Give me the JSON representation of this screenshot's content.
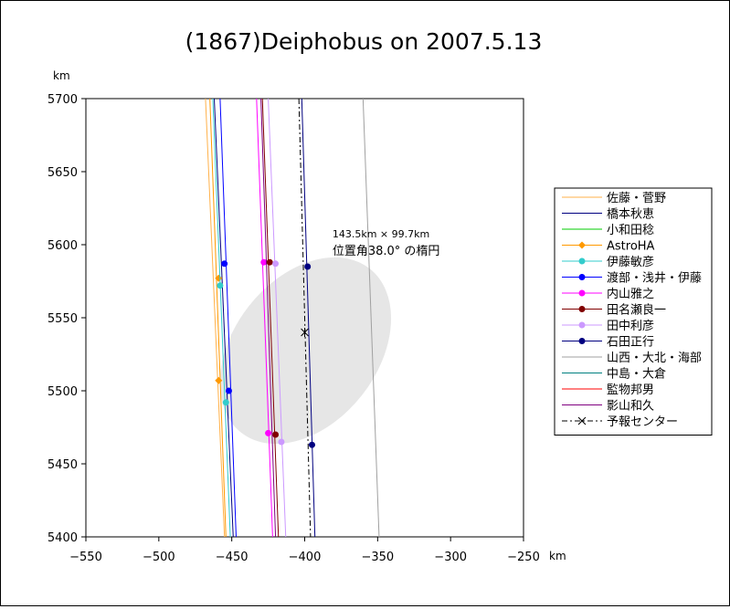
{
  "chart_data": {
    "type": "line",
    "title": "(1867)Deiphobus on 2007.5.13",
    "xlabel": "km",
    "ylabel": "km",
    "xlim": [
      -550,
      -250
    ],
    "ylim": [
      5400,
      5700
    ],
    "xticks": [
      -550,
      -500,
      -450,
      -400,
      -350,
      -300,
      -250
    ],
    "yticks": [
      5400,
      5450,
      5500,
      5550,
      5600,
      5650,
      5700
    ],
    "grid": false,
    "legend_position": "right",
    "annotation": {
      "line1": "143.5km × 99.7km",
      "line2": "位置角38.0°  の楕円",
      "x": -381,
      "y": 5605
    },
    "ellipse": {
      "center": [
        -399.5,
        5527.5
      ],
      "major_km": 143.5,
      "minor_km": 99.7,
      "position_angle_deg": 38.0,
      "fill": "#e6e6e6",
      "stroke": "#ffffff"
    },
    "series": [
      {
        "name": "佐藤・菅野",
        "color": "#ffb14a",
        "marker": "none",
        "line": [
          [
            -468,
            5700
          ],
          [
            -455,
            5400
          ]
        ],
        "points": []
      },
      {
        "name": "橋本秋恵",
        "color": "#000080",
        "marker": "none",
        "line": [
          [
            -462,
            5700
          ],
          [
            -449,
            5400
          ]
        ],
        "points": []
      },
      {
        "name": "小和田稔",
        "color": "#00cc00",
        "marker": "none",
        "line": [],
        "points": []
      },
      {
        "name": "AstroHA",
        "color": "#ff9900",
        "marker": "diamond",
        "line": [
          [
            -465,
            5700
          ],
          [
            -454,
            5400
          ]
        ],
        "points": [
          [
            -459,
            5577
          ],
          [
            -459,
            5507
          ]
        ]
      },
      {
        "name": "伊藤敏彦",
        "color": "#33cccc",
        "marker": "circle",
        "line": [
          [
            -463,
            5700
          ],
          [
            -451,
            5400
          ]
        ],
        "points": [
          [
            -458,
            5572
          ],
          [
            -454,
            5492
          ]
        ]
      },
      {
        "name": "渡部・浅井・伊藤",
        "color": "#0000ff",
        "marker": "circle",
        "line": [
          [
            -458,
            5700
          ],
          [
            -447,
            5400
          ]
        ],
        "points": [
          [
            -455,
            5587
          ],
          [
            -452,
            5500
          ]
        ]
      },
      {
        "name": "内山雅之",
        "color": "#ff00ff",
        "marker": "circle",
        "line": [
          [
            -433,
            5700
          ],
          [
            -422,
            5400
          ]
        ],
        "points": [
          [
            -428,
            5588
          ],
          [
            -425,
            5471
          ]
        ]
      },
      {
        "name": "田名瀬良一",
        "color": "#800000",
        "marker": "circle",
        "line": [
          [
            -429,
            5700
          ],
          [
            -418,
            5400
          ]
        ],
        "points": [
          [
            -424,
            5588
          ],
          [
            -420,
            5470
          ]
        ]
      },
      {
        "name": "田中利彦",
        "color": "#cc99ff",
        "marker": "circle",
        "line": [
          [
            -425,
            5700
          ],
          [
            -413,
            5400
          ]
        ],
        "points": [
          [
            -420,
            5587
          ],
          [
            -416,
            5465
          ]
        ]
      },
      {
        "name": "石田正行",
        "color": "#000080",
        "marker": "circle",
        "line": [
          [
            -402,
            5700
          ],
          [
            -393,
            5400
          ]
        ],
        "points": [
          [
            -398,
            5585
          ],
          [
            -395,
            5463
          ]
        ]
      },
      {
        "name": "山西・大北・海部",
        "color": "#a0a0a0",
        "marker": "none",
        "line": [
          [
            -360,
            5700
          ],
          [
            -349,
            5400
          ]
        ],
        "points": []
      },
      {
        "name": "中島・大倉",
        "color": "#008080",
        "marker": "none",
        "line": [],
        "points": []
      },
      {
        "name": "監物邦男",
        "color": "#ff0000",
        "marker": "none",
        "line": [],
        "points": []
      },
      {
        "name": "影山和久",
        "color": "#800080",
        "marker": "none",
        "line": [
          [
            -430,
            5700
          ],
          [
            -420,
            5400
          ]
        ],
        "points": []
      },
      {
        "name": "予報センター",
        "color": "#000000",
        "marker": "x",
        "dash": true,
        "line": [
          [
            -404,
            5700
          ],
          [
            -396,
            5400
          ]
        ],
        "points": [
          [
            -400,
            5540
          ]
        ]
      }
    ]
  }
}
